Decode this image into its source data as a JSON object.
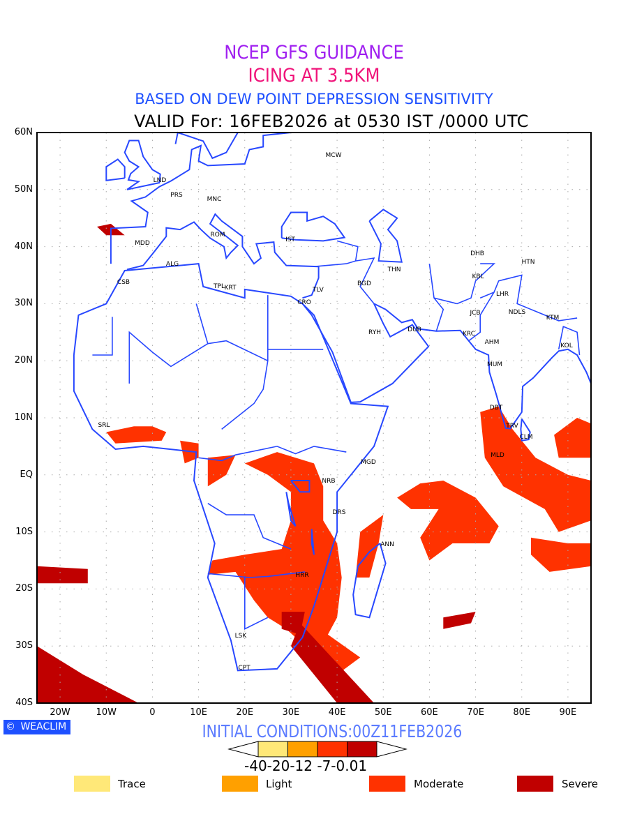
{
  "title": {
    "line1": "NCEP GFS GUIDANCE",
    "line2": "ICING AT 3.5KM",
    "line3": "BASED ON DEW POINT DEPRESSION SENSITIVITY",
    "line4": "VALID For: 16FEB2026 at 0530 IST /0000 UTC"
  },
  "axes": {
    "lat_labels": [
      "60N",
      "50N",
      "40N",
      "30N",
      "20N",
      "10N",
      "EQ",
      "10S",
      "20S",
      "30S",
      "40S"
    ],
    "lon_labels": [
      "20W",
      "10W",
      "0",
      "10E",
      "20E",
      "30E",
      "40E",
      "50E",
      "60E",
      "70E",
      "80E",
      "90E"
    ]
  },
  "cities": [
    "MCW",
    "LND",
    "PRS",
    "MNC",
    "ROM",
    "IST",
    "MDD",
    "ALG",
    "CSB",
    "TPL",
    "KRT",
    "TLV",
    "CRO",
    "THN",
    "BGD",
    "DHB",
    "HTN",
    "KBL",
    "LHR",
    "JCB",
    "NDLS",
    "KTM",
    "RYH",
    "DUB",
    "KRC",
    "AHM",
    "KOL",
    "MUM",
    "DBT",
    "TRV",
    "CLM",
    "SRL",
    "MLD",
    "MGD",
    "NRB",
    "DRS",
    "ANN",
    "HRR",
    "LSK",
    "CPT"
  ],
  "footer": {
    "logo": "WEACLIM",
    "initial_conditions": "INITIAL CONDITIONS:00Z11FEB2026",
    "colorbar_labels": "-40-20-12 -7-0.01"
  },
  "legend": [
    {
      "label": "Trace",
      "color": "#ffe878"
    },
    {
      "label": "Light",
      "color": "#ffa000"
    },
    {
      "label": "Moderate",
      "color": "#ff3200"
    },
    {
      "label": "Severe",
      "color": "#c00000"
    }
  ],
  "colors": {
    "coast": "#2848ff",
    "frame": "#000000"
  }
}
